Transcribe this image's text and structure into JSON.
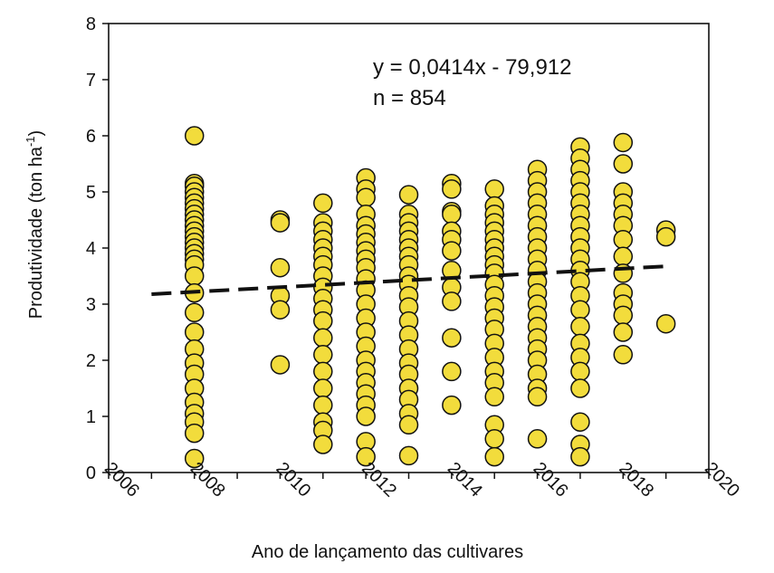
{
  "chart_data": {
    "type": "scatter",
    "xlabel": "Ano de lançamento das cultivares",
    "ylabel_main": "Produtividade (ton ha",
    "ylabel_sup": "-1",
    "ylabel_close": ")",
    "xlim": [
      2006,
      2020
    ],
    "ylim": [
      0,
      8
    ],
    "xticks": [
      "2006",
      "2008",
      "2010",
      "2012",
      "2014",
      "2016",
      "2018",
      "2020"
    ],
    "yticks": [
      "0",
      "1",
      "2",
      "3",
      "4",
      "5",
      "6",
      "7",
      "8"
    ],
    "equation": "y = 0,0414x - 79,912",
    "n_label": "n = 854",
    "point_color": "#f2dc3c",
    "point_edge": "#111111",
    "trend": {
      "slope": 0.0414,
      "intercept": -79.912,
      "x_from": 2007,
      "x_to": 2019
    },
    "points": [
      {
        "x": 2008,
        "y": 6.0
      },
      {
        "x": 2008,
        "y": 5.15
      },
      {
        "x": 2008,
        "y": 5.1
      },
      {
        "x": 2008,
        "y": 5.0
      },
      {
        "x": 2008,
        "y": 4.9
      },
      {
        "x": 2008,
        "y": 4.8
      },
      {
        "x": 2008,
        "y": 4.7
      },
      {
        "x": 2008,
        "y": 4.6
      },
      {
        "x": 2008,
        "y": 4.5
      },
      {
        "x": 2008,
        "y": 4.4
      },
      {
        "x": 2008,
        "y": 4.3
      },
      {
        "x": 2008,
        "y": 4.2
      },
      {
        "x": 2008,
        "y": 4.1
      },
      {
        "x": 2008,
        "y": 4.0
      },
      {
        "x": 2008,
        "y": 3.9
      },
      {
        "x": 2008,
        "y": 3.8
      },
      {
        "x": 2008,
        "y": 3.7
      },
      {
        "x": 2008,
        "y": 3.5
      },
      {
        "x": 2008,
        "y": 3.2
      },
      {
        "x": 2008,
        "y": 2.85
      },
      {
        "x": 2008,
        "y": 2.5
      },
      {
        "x": 2008,
        "y": 2.2
      },
      {
        "x": 2008,
        "y": 1.95
      },
      {
        "x": 2008,
        "y": 1.75
      },
      {
        "x": 2008,
        "y": 1.5
      },
      {
        "x": 2008,
        "y": 1.25
      },
      {
        "x": 2008,
        "y": 1.05
      },
      {
        "x": 2008,
        "y": 0.9
      },
      {
        "x": 2008,
        "y": 0.7
      },
      {
        "x": 2008,
        "y": 0.25
      },
      {
        "x": 2010,
        "y": 4.5
      },
      {
        "x": 2010,
        "y": 4.45
      },
      {
        "x": 2010,
        "y": 3.65
      },
      {
        "x": 2010,
        "y": 3.15
      },
      {
        "x": 2010,
        "y": 2.9
      },
      {
        "x": 2010,
        "y": 1.92
      },
      {
        "x": 2011,
        "y": 4.8
      },
      {
        "x": 2011,
        "y": 4.45
      },
      {
        "x": 2011,
        "y": 4.3
      },
      {
        "x": 2011,
        "y": 4.15
      },
      {
        "x": 2011,
        "y": 4.0
      },
      {
        "x": 2011,
        "y": 3.85
      },
      {
        "x": 2011,
        "y": 3.7
      },
      {
        "x": 2011,
        "y": 3.5
      },
      {
        "x": 2011,
        "y": 3.3
      },
      {
        "x": 2011,
        "y": 3.1
      },
      {
        "x": 2011,
        "y": 2.9
      },
      {
        "x": 2011,
        "y": 2.7
      },
      {
        "x": 2011,
        "y": 2.4
      },
      {
        "x": 2011,
        "y": 2.1
      },
      {
        "x": 2011,
        "y": 1.8
      },
      {
        "x": 2011,
        "y": 1.5
      },
      {
        "x": 2011,
        "y": 1.2
      },
      {
        "x": 2011,
        "y": 0.9
      },
      {
        "x": 2011,
        "y": 0.75
      },
      {
        "x": 2011,
        "y": 0.5
      },
      {
        "x": 2012,
        "y": 5.25
      },
      {
        "x": 2012,
        "y": 5.05
      },
      {
        "x": 2012,
        "y": 4.9
      },
      {
        "x": 2012,
        "y": 4.6
      },
      {
        "x": 2012,
        "y": 4.4
      },
      {
        "x": 2012,
        "y": 4.25
      },
      {
        "x": 2012,
        "y": 4.1
      },
      {
        "x": 2012,
        "y": 3.95
      },
      {
        "x": 2012,
        "y": 3.8
      },
      {
        "x": 2012,
        "y": 3.65
      },
      {
        "x": 2012,
        "y": 3.45
      },
      {
        "x": 2012,
        "y": 3.25
      },
      {
        "x": 2012,
        "y": 3.0
      },
      {
        "x": 2012,
        "y": 2.75
      },
      {
        "x": 2012,
        "y": 2.5
      },
      {
        "x": 2012,
        "y": 2.25
      },
      {
        "x": 2012,
        "y": 2.0
      },
      {
        "x": 2012,
        "y": 1.8
      },
      {
        "x": 2012,
        "y": 1.6
      },
      {
        "x": 2012,
        "y": 1.4
      },
      {
        "x": 2012,
        "y": 1.2
      },
      {
        "x": 2012,
        "y": 1.0
      },
      {
        "x": 2012,
        "y": 0.55
      },
      {
        "x": 2012,
        "y": 0.28
      },
      {
        "x": 2013,
        "y": 4.95
      },
      {
        "x": 2013,
        "y": 4.6
      },
      {
        "x": 2013,
        "y": 4.45
      },
      {
        "x": 2013,
        "y": 4.3
      },
      {
        "x": 2013,
        "y": 4.15
      },
      {
        "x": 2013,
        "y": 4.0
      },
      {
        "x": 2013,
        "y": 3.85
      },
      {
        "x": 2013,
        "y": 3.7
      },
      {
        "x": 2013,
        "y": 3.5
      },
      {
        "x": 2013,
        "y": 3.35
      },
      {
        "x": 2013,
        "y": 3.15
      },
      {
        "x": 2013,
        "y": 2.95
      },
      {
        "x": 2013,
        "y": 2.7
      },
      {
        "x": 2013,
        "y": 2.45
      },
      {
        "x": 2013,
        "y": 2.2
      },
      {
        "x": 2013,
        "y": 1.95
      },
      {
        "x": 2013,
        "y": 1.75
      },
      {
        "x": 2013,
        "y": 1.5
      },
      {
        "x": 2013,
        "y": 1.3
      },
      {
        "x": 2013,
        "y": 1.05
      },
      {
        "x": 2013,
        "y": 0.85
      },
      {
        "x": 2013,
        "y": 0.3
      },
      {
        "x": 2014,
        "y": 5.15
      },
      {
        "x": 2014,
        "y": 5.05
      },
      {
        "x": 2014,
        "y": 4.65
      },
      {
        "x": 2014,
        "y": 4.6
      },
      {
        "x": 2014,
        "y": 4.3
      },
      {
        "x": 2014,
        "y": 4.15
      },
      {
        "x": 2014,
        "y": 3.95
      },
      {
        "x": 2014,
        "y": 3.6
      },
      {
        "x": 2014,
        "y": 3.3
      },
      {
        "x": 2014,
        "y": 3.05
      },
      {
        "x": 2014,
        "y": 2.4
      },
      {
        "x": 2014,
        "y": 1.8
      },
      {
        "x": 2014,
        "y": 1.2
      },
      {
        "x": 2015,
        "y": 5.05
      },
      {
        "x": 2015,
        "y": 4.75
      },
      {
        "x": 2015,
        "y": 4.6
      },
      {
        "x": 2015,
        "y": 4.45
      },
      {
        "x": 2015,
        "y": 4.3
      },
      {
        "x": 2015,
        "y": 4.15
      },
      {
        "x": 2015,
        "y": 4.0
      },
      {
        "x": 2015,
        "y": 3.85
      },
      {
        "x": 2015,
        "y": 3.7
      },
      {
        "x": 2015,
        "y": 3.55
      },
      {
        "x": 2015,
        "y": 3.35
      },
      {
        "x": 2015,
        "y": 3.15
      },
      {
        "x": 2015,
        "y": 2.95
      },
      {
        "x": 2015,
        "y": 2.75
      },
      {
        "x": 2015,
        "y": 2.55
      },
      {
        "x": 2015,
        "y": 2.3
      },
      {
        "x": 2015,
        "y": 2.05
      },
      {
        "x": 2015,
        "y": 1.8
      },
      {
        "x": 2015,
        "y": 1.6
      },
      {
        "x": 2015,
        "y": 1.35
      },
      {
        "x": 2015,
        "y": 0.85
      },
      {
        "x": 2015,
        "y": 0.6
      },
      {
        "x": 2015,
        "y": 0.28
      },
      {
        "x": 2016,
        "y": 5.4
      },
      {
        "x": 2016,
        "y": 5.2
      },
      {
        "x": 2016,
        "y": 5.0
      },
      {
        "x": 2016,
        "y": 4.8
      },
      {
        "x": 2016,
        "y": 4.6
      },
      {
        "x": 2016,
        "y": 4.4
      },
      {
        "x": 2016,
        "y": 4.2
      },
      {
        "x": 2016,
        "y": 4.0
      },
      {
        "x": 2016,
        "y": 3.8
      },
      {
        "x": 2016,
        "y": 3.6
      },
      {
        "x": 2016,
        "y": 3.4
      },
      {
        "x": 2016,
        "y": 3.2
      },
      {
        "x": 2016,
        "y": 3.0
      },
      {
        "x": 2016,
        "y": 2.8
      },
      {
        "x": 2016,
        "y": 2.6
      },
      {
        "x": 2016,
        "y": 2.4
      },
      {
        "x": 2016,
        "y": 2.2
      },
      {
        "x": 2016,
        "y": 2.0
      },
      {
        "x": 2016,
        "y": 1.75
      },
      {
        "x": 2016,
        "y": 1.5
      },
      {
        "x": 2016,
        "y": 1.35
      },
      {
        "x": 2016,
        "y": 0.6
      },
      {
        "x": 2017,
        "y": 5.8
      },
      {
        "x": 2017,
        "y": 5.6
      },
      {
        "x": 2017,
        "y": 5.4
      },
      {
        "x": 2017,
        "y": 5.2
      },
      {
        "x": 2017,
        "y": 5.0
      },
      {
        "x": 2017,
        "y": 4.8
      },
      {
        "x": 2017,
        "y": 4.6
      },
      {
        "x": 2017,
        "y": 4.4
      },
      {
        "x": 2017,
        "y": 4.2
      },
      {
        "x": 2017,
        "y": 4.0
      },
      {
        "x": 2017,
        "y": 3.8
      },
      {
        "x": 2017,
        "y": 3.6
      },
      {
        "x": 2017,
        "y": 3.4
      },
      {
        "x": 2017,
        "y": 3.15
      },
      {
        "x": 2017,
        "y": 2.9
      },
      {
        "x": 2017,
        "y": 2.6
      },
      {
        "x": 2017,
        "y": 2.3
      },
      {
        "x": 2017,
        "y": 2.05
      },
      {
        "x": 2017,
        "y": 1.8
      },
      {
        "x": 2017,
        "y": 1.5
      },
      {
        "x": 2017,
        "y": 0.9
      },
      {
        "x": 2017,
        "y": 0.5
      },
      {
        "x": 2017,
        "y": 0.28
      },
      {
        "x": 2018,
        "y": 5.88
      },
      {
        "x": 2018,
        "y": 5.5
      },
      {
        "x": 2018,
        "y": 5.0
      },
      {
        "x": 2018,
        "y": 4.8
      },
      {
        "x": 2018,
        "y": 4.6
      },
      {
        "x": 2018,
        "y": 4.4
      },
      {
        "x": 2018,
        "y": 4.15
      },
      {
        "x": 2018,
        "y": 3.85
      },
      {
        "x": 2018,
        "y": 3.55
      },
      {
        "x": 2018,
        "y": 3.2
      },
      {
        "x": 2018,
        "y": 3.0
      },
      {
        "x": 2018,
        "y": 2.8
      },
      {
        "x": 2018,
        "y": 2.5
      },
      {
        "x": 2018,
        "y": 2.1
      },
      {
        "x": 2019,
        "y": 4.32
      },
      {
        "x": 2019,
        "y": 4.2
      },
      {
        "x": 2019,
        "y": 2.65
      }
    ]
  }
}
